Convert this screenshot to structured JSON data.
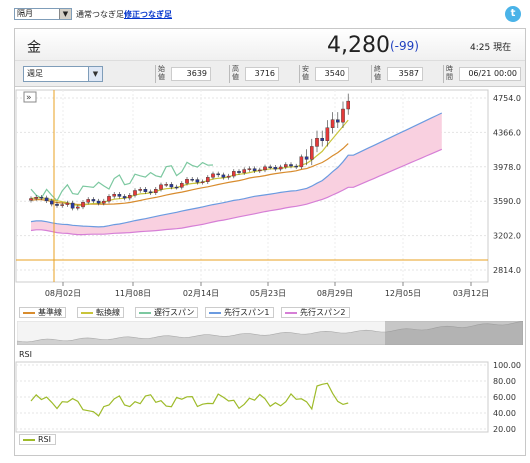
{
  "topbar": {
    "period_select": "隔月",
    "radio_label": "通常つなぎ足",
    "adjusted_link": "修正つなぎ足",
    "share_icon": "twitter-icon",
    "share_glyph": "t"
  },
  "header": {
    "asset_name": "金",
    "price": "4,280",
    "change": "(-99)",
    "time": "4:25  現在"
  },
  "ohlc": {
    "timeframe": "週足",
    "items": [
      {
        "label": "始値",
        "value": "3639"
      },
      {
        "label": "高値",
        "value": "3716"
      },
      {
        "label": "安値",
        "value": "3540"
      },
      {
        "label": "終値",
        "value": "3587"
      },
      {
        "label": "時間",
        "value": "06/21 00:00"
      }
    ]
  },
  "chart_data": [
    {
      "type": "line",
      "title": "",
      "y_ticks": [
        "4754.0",
        "4366.0",
        "3978.0",
        "3590.0",
        "3202.0",
        "2814.0"
      ],
      "x_ticks": [
        "08月02日",
        "11月08日",
        "02月14日",
        "05月23日",
        "08月29日",
        "12月05日",
        "03月12日"
      ],
      "ylim": [
        2814,
        4754
      ],
      "series": [
        {
          "name": "基準線"
        },
        {
          "name": "転換線"
        },
        {
          "name": "遅行スパン"
        },
        {
          "name": "先行スパン1"
        },
        {
          "name": "先行スパン2"
        }
      ]
    },
    {
      "type": "line",
      "title": "RSI",
      "y_ticks": [
        "100.00",
        "80.00",
        "60.00",
        "40.00",
        "20.00"
      ],
      "ylim": [
        20,
        100
      ],
      "series": [
        {
          "name": "RSI"
        }
      ]
    }
  ],
  "colors": {
    "kijun": "#d88c2e",
    "tenkan": "#c9c43a",
    "chikou": "#7cc8a0",
    "senkou1": "#6b9be0",
    "senkou2": "#d67fd6",
    "cloud": "#f9d0e0",
    "rsi": "#9ebb2a",
    "candle_up": "#e43a3a",
    "candle_down": "#2a3a9c"
  }
}
